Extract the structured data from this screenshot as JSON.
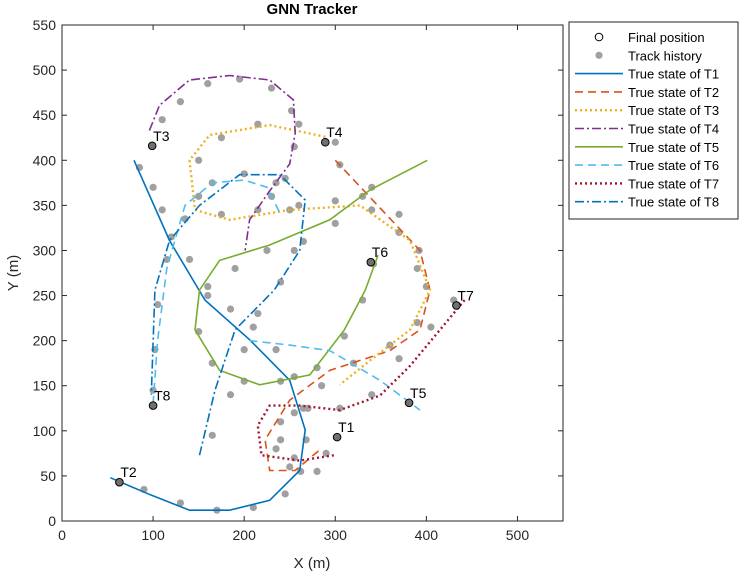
{
  "chart_data": {
    "type": "line",
    "title": "GNN Tracker",
    "xlabel": "X (m)",
    "ylabel": "Y (m)",
    "xlim": [
      0,
      550
    ],
    "ylim": [
      0,
      550
    ],
    "xticks": [
      0,
      100,
      200,
      300,
      400,
      500
    ],
    "yticks": [
      0,
      50,
      100,
      150,
      200,
      250,
      300,
      350,
      400,
      450,
      500,
      550
    ],
    "legend": "outside-right",
    "series": [
      {
        "name": "Final position",
        "mode": "markers",
        "marker": "open-circle",
        "color": "#000000",
        "x": [
          302,
          63,
          99,
          289,
          381,
          339,
          433,
          100
        ],
        "y": [
          93,
          43,
          416,
          420,
          131,
          287,
          239,
          128
        ],
        "labels": [
          "T1",
          "T2",
          "T3",
          "T4",
          "T5",
          "T6",
          "T7",
          "T8"
        ]
      },
      {
        "name": "Track history",
        "mode": "markers",
        "marker": "dot",
        "color": "#a0a0a0",
        "x": [
          85,
          100,
          110,
          120,
          140,
          160,
          185,
          210,
          235,
          255,
          265,
          268,
          262,
          245,
          210,
          170,
          130,
          90,
          305,
          340,
          370,
          392,
          400,
          390,
          360,
          320,
          285,
          255,
          240,
          250,
          280,
          300,
          260,
          215,
          175,
          150,
          150,
          175,
          215,
          260,
          300,
          340,
          370,
          390,
          110,
          130,
          160,
          195,
          230,
          252,
          255,
          245,
          230,
          330,
          300,
          265,
          225,
          190,
          160,
          150,
          165,
          200,
          240,
          280,
          310,
          330,
          342,
          100,
          102,
          105,
          115,
          135,
          165,
          200,
          235,
          250,
          255,
          240,
          215,
          200,
          185,
          165,
          430,
          405,
          370,
          340,
          305,
          270,
          240,
          235,
          255,
          290
        ],
        "y": [
          392,
          370,
          345,
          315,
          290,
          260,
          235,
          215,
          190,
          160,
          125,
          90,
          55,
          30,
          15,
          12,
          20,
          35,
          395,
          370,
          340,
          300,
          260,
          220,
          195,
          175,
          150,
          120,
          90,
          60,
          55,
          420,
          440,
          440,
          425,
          400,
          360,
          340,
          345,
          350,
          355,
          345,
          320,
          280,
          445,
          465,
          485,
          490,
          480,
          455,
          415,
          380,
          360,
          360,
          330,
          310,
          300,
          280,
          250,
          210,
          175,
          155,
          155,
          170,
          205,
          245,
          285,
          145,
          190,
          240,
          290,
          335,
          375,
          385,
          375,
          345,
          300,
          265,
          230,
          190,
          140,
          95,
          245,
          215,
          180,
          140,
          125,
          125,
          110,
          80,
          70,
          75
        ]
      },
      {
        "name": "True state of T1",
        "mode": "line",
        "line_style": "solid",
        "color": "#0072bd",
        "x": [
          79,
          118,
          157,
          206,
          250,
          267,
          261,
          228,
          184,
          140,
          97,
          53
        ],
        "y": [
          400,
          311,
          245,
          201,
          156,
          101,
          56,
          23,
          12,
          12,
          29,
          48
        ]
      },
      {
        "name": "True state of T2",
        "mode": "line",
        "line_style": "dashed",
        "color": "#d95319",
        "x": [
          300,
          393,
          404,
          393,
          360,
          294,
          250,
          223,
          228,
          256,
          283
        ],
        "y": [
          400,
          300,
          256,
          212,
          189,
          167,
          134,
          90,
          56,
          56,
          79
        ]
      },
      {
        "name": "True state of T3",
        "mode": "line",
        "line_style": "dotted",
        "color": "#edb120",
        "x": [
          289,
          228,
          162,
          140,
          146,
          184,
          250,
          327,
          382,
          404,
          382,
          338,
          305
        ],
        "y": [
          426,
          439,
          428,
          400,
          345,
          334,
          345,
          350,
          311,
          256,
          212,
          178,
          151
        ]
      },
      {
        "name": "True state of T4",
        "mode": "line",
        "line_style": "dashdot",
        "color": "#7e2f8e",
        "x": [
          96,
          107,
          140,
          184,
          228,
          254,
          256,
          250,
          228,
          206,
          201
        ],
        "y": [
          433,
          461,
          489,
          494,
          489,
          467,
          430,
          396,
          366,
          334,
          300
        ]
      },
      {
        "name": "True state of T5",
        "mode": "line",
        "line_style": "solid",
        "color": "#77ac30",
        "x": [
          401,
          338,
          294,
          228,
          173,
          151,
          146,
          173,
          217,
          272,
          310,
          333,
          347
        ],
        "y": [
          400,
          367,
          334,
          306,
          289,
          256,
          212,
          167,
          151,
          162,
          212,
          256,
          295
        ]
      },
      {
        "name": "True state of T6",
        "mode": "line",
        "line_style": "dashed",
        "color": "#4dbeee",
        "x": [
          100,
          105,
          115,
          135,
          165,
          200,
          225,
          240,
          null,
          206,
          250,
          294,
          349,
          393
        ],
        "y": [
          130,
          200,
          280,
          350,
          375,
          378,
          370,
          340,
          null,
          200,
          195,
          189,
          156,
          123
        ]
      },
      {
        "name": "True state of T7",
        "mode": "line",
        "line_style": "dotted",
        "color": "#a2142f",
        "x": [
          442,
          415,
          382,
          349,
          305,
          261,
          228,
          215,
          219,
          261,
          299
        ],
        "y": [
          245,
          212,
          172,
          139,
          123,
          128,
          128,
          106,
          73,
          67,
          73
        ]
      },
      {
        "name": "True state of T8",
        "mode": "line",
        "line_style": "dashdot",
        "color": "#0072bd",
        "x": [
          151,
          168,
          190,
          233,
          261,
          267,
          239,
          195,
          151,
          118,
          102,
          98
        ],
        "y": [
          73,
          145,
          212,
          256,
          300,
          356,
          384,
          384,
          350,
          311,
          256,
          140
        ]
      }
    ]
  }
}
